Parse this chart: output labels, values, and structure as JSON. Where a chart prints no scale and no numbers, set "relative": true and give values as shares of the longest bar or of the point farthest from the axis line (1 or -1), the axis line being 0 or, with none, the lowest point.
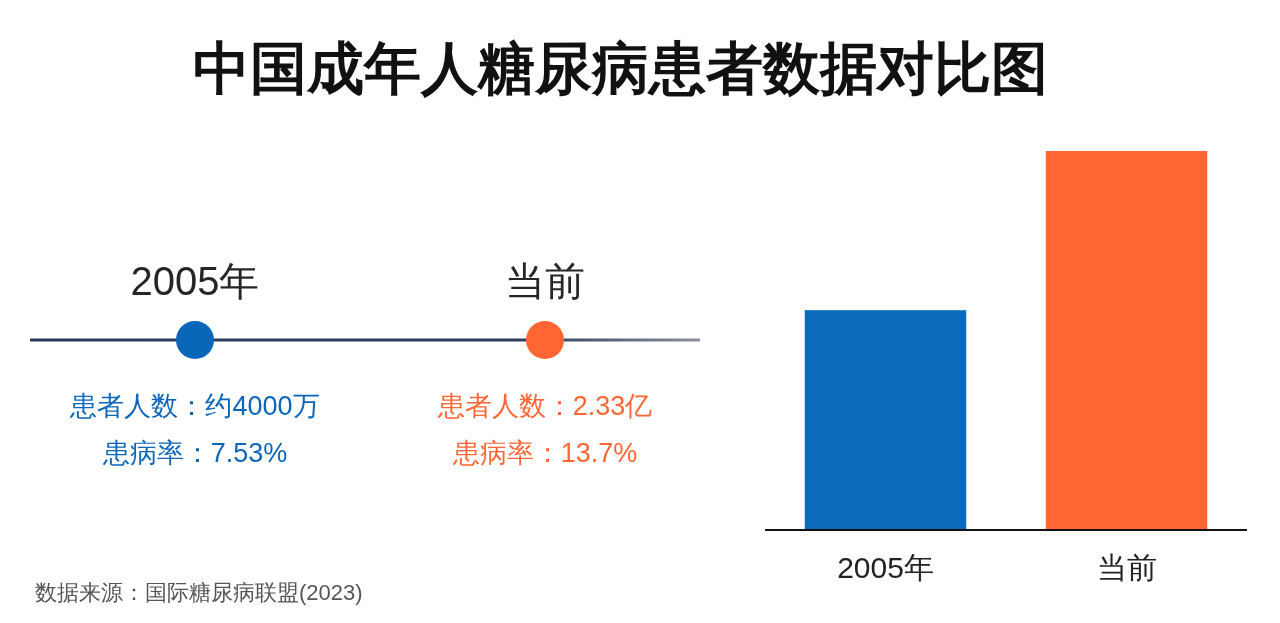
{
  "chart_data": [
    {
      "type": "other",
      "title": "中国成年人糖尿病患者数据对比图",
      "categories": [
        "2005年",
        "当前"
      ],
      "colors": [
        "#0a66b8",
        "#ff6633"
      ],
      "annotations": [
        {
          "text": "患者人数：约4000万",
          "x": "2005年"
        },
        {
          "text": "患病率：7.53%",
          "x": "2005年"
        },
        {
          "text": "患者人数：2.33亿",
          "x": "当前"
        },
        {
          "text": "患病率：13.7%",
          "x": "当前"
        },
        "数据来源：国际糖尿病联盟(2023)"
      ]
    },
    {
      "type": "bar",
      "categories": [
        "2005年",
        "当前"
      ],
      "values": [
        0.58,
        1
      ],
      "colors": [
        "#0a6bbd",
        "#ff6633"
      ],
      "relative": true
    }
  ]
}
